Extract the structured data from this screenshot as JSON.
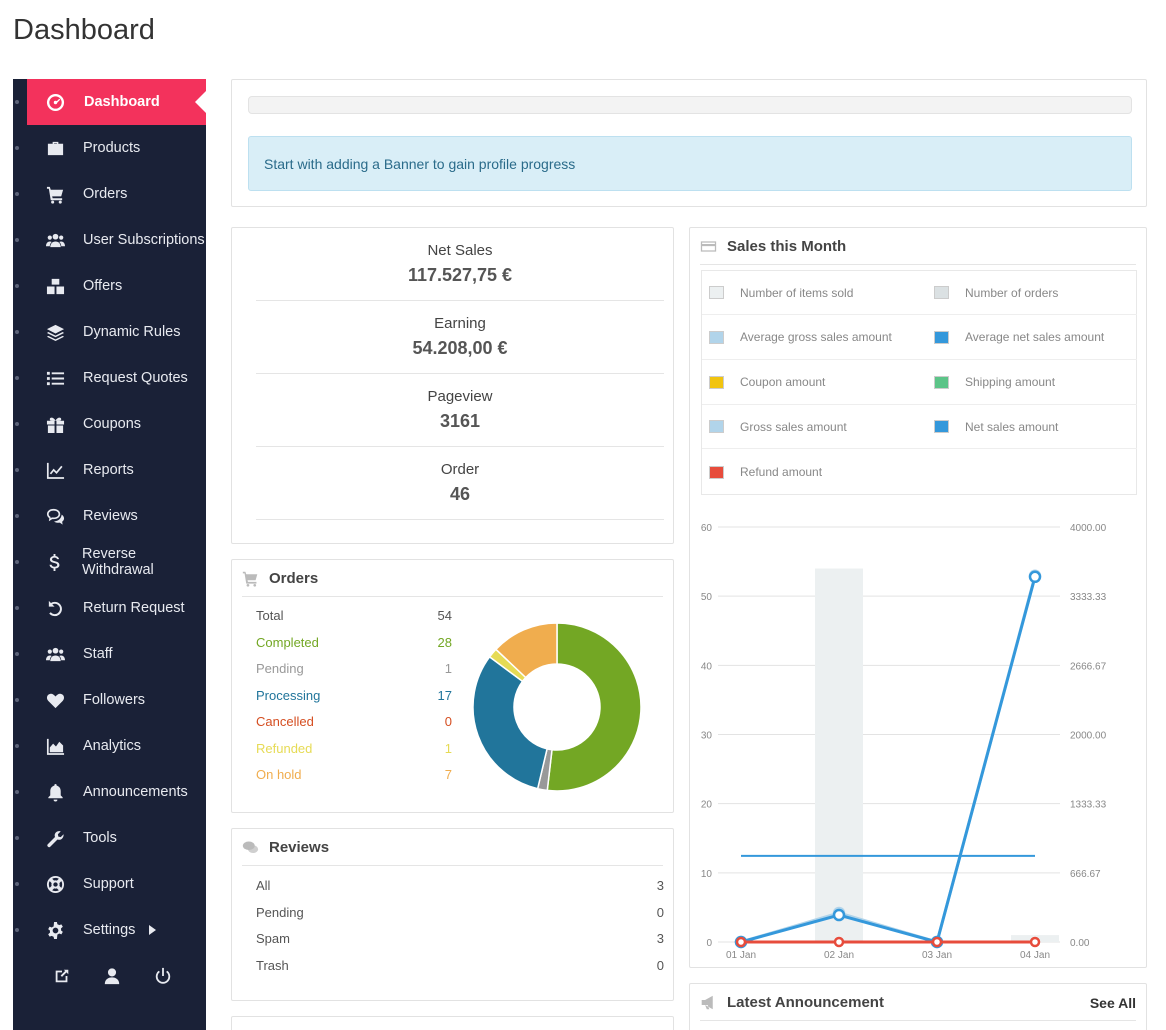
{
  "page": {
    "title": "Dashboard"
  },
  "sidebar": {
    "items": [
      {
        "label": "Dashboard",
        "icon": "tachometer-icon",
        "active": true
      },
      {
        "label": "Products",
        "icon": "briefcase-icon"
      },
      {
        "label": "Orders",
        "icon": "cart-icon"
      },
      {
        "label": "User Subscriptions",
        "icon": "users-icon"
      },
      {
        "label": "Offers",
        "icon": "boxes-icon"
      },
      {
        "label": "Dynamic Rules",
        "icon": "layers-icon"
      },
      {
        "label": "Request Quotes",
        "icon": "list-icon"
      },
      {
        "label": "Coupons",
        "icon": "gift-icon"
      },
      {
        "label": "Reports",
        "icon": "line-chart-icon"
      },
      {
        "label": "Reviews",
        "icon": "comments-icon"
      },
      {
        "label": "Reverse Withdrawal",
        "icon": "dollar-icon"
      },
      {
        "label": "Return Request",
        "icon": "undo-icon"
      },
      {
        "label": "Staff",
        "icon": "users-icon"
      },
      {
        "label": "Followers",
        "icon": "heart-icon"
      },
      {
        "label": "Analytics",
        "icon": "area-chart-icon"
      },
      {
        "label": "Announcements",
        "icon": "bell-icon"
      },
      {
        "label": "Tools",
        "icon": "wrench-icon"
      },
      {
        "label": "Support",
        "icon": "life-ring-icon"
      },
      {
        "label": "Settings",
        "icon": "gear-icon",
        "has_submenu": true
      }
    ],
    "footer": [
      "external-link-icon",
      "user-icon",
      "power-icon"
    ]
  },
  "progress": {
    "value_percent": 0,
    "message": "Start with adding a Banner to gain profile progress"
  },
  "stats": [
    {
      "label": "Net Sales",
      "value": "117.527,75 €"
    },
    {
      "label": "Earning",
      "value": "54.208,00 €"
    },
    {
      "label": "Pageview",
      "value": "3161"
    },
    {
      "label": "Order",
      "value": "46"
    }
  ],
  "orders": {
    "title": "Orders",
    "rows": [
      {
        "label": "Total",
        "count": "54",
        "color": "#555555"
      },
      {
        "label": "Completed",
        "count": "28",
        "color": "#73a724"
      },
      {
        "label": "Pending",
        "count": "1",
        "color": "#999999"
      },
      {
        "label": "Processing",
        "count": "17",
        "color": "#21759b"
      },
      {
        "label": "Cancelled",
        "count": "0",
        "color": "#d54e21"
      },
      {
        "label": "Refunded",
        "count": "1",
        "color": "#e6db55"
      },
      {
        "label": "On hold",
        "count": "7",
        "color": "#f0ad4e"
      }
    ]
  },
  "reviews": {
    "title": "Reviews",
    "rows": [
      {
        "label": "All",
        "count": "3"
      },
      {
        "label": "Pending",
        "count": "0"
      },
      {
        "label": "Spam",
        "count": "3"
      },
      {
        "label": "Trash",
        "count": "0"
      }
    ]
  },
  "sales_month": {
    "title": "Sales this Month",
    "legend": [
      {
        "label": "Number of items sold",
        "color": "#ecf0f1"
      },
      {
        "label": "Number of orders",
        "color": "#dbe1e3"
      },
      {
        "label": "Average gross sales amount",
        "color": "#b1d4ea"
      },
      {
        "label": "Average net sales amount",
        "color": "#3498db"
      },
      {
        "label": "Coupon amount",
        "color": "#f1c40f"
      },
      {
        "label": "Shipping amount",
        "color": "#5cc488"
      },
      {
        "label": "Gross sales amount",
        "color": "#b1d4ea"
      },
      {
        "label": "Net sales amount",
        "color": "#3498db"
      },
      {
        "label": "Refund amount",
        "color": "#e74c3c"
      }
    ]
  },
  "chart_data": {
    "type": "line",
    "categories": [
      "01 Jan",
      "02 Jan",
      "03 Jan",
      "04 Jan"
    ],
    "y_left": {
      "ticks": [
        "60",
        "50",
        "40",
        "30",
        "20",
        "10",
        "0"
      ],
      "range": [
        0,
        60
      ]
    },
    "y_right": {
      "ticks": [
        "4000.00",
        "3333.33",
        "2666.67",
        "2000.00",
        "1333.33",
        "666.67",
        "0.00"
      ],
      "range": [
        0,
        4000
      ]
    },
    "bars": {
      "name": "Number of items sold",
      "values": [
        0,
        54,
        0,
        1
      ],
      "color": "#ecf0f1"
    },
    "series": [
      {
        "name": "Average net sales amount",
        "values": [
          830,
          830,
          830,
          830
        ],
        "color": "#3498db",
        "style": "flat"
      },
      {
        "name": "Gross sales amount",
        "values": [
          0,
          280,
          0,
          3530
        ],
        "color": "#b1d4ea",
        "style": "points"
      },
      {
        "name": "Net sales amount",
        "values": [
          0,
          260,
          0,
          3520
        ],
        "color": "#3498db",
        "style": "points"
      },
      {
        "name": "Refund amount",
        "values": [
          0,
          0,
          0,
          0
        ],
        "color": "#e74c3c",
        "style": "points"
      }
    ],
    "grid": true
  },
  "announcement": {
    "title": "Latest Announcement",
    "see_all": "See All"
  }
}
